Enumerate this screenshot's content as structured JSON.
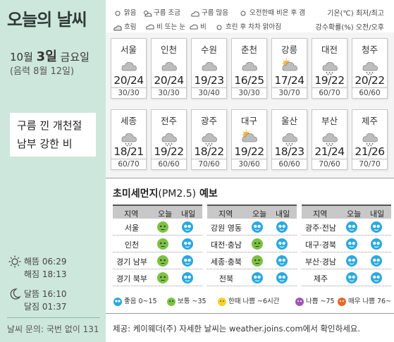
{
  "sidebar": {
    "title": "오늘의 날씨",
    "date_month": "10월",
    "date_day": "3일",
    "date_weekday": "금요일",
    "lunar": "(음력 8월 12일)",
    "note_line1": "구름 낀 개천절",
    "note_line2": "남부 강한 비",
    "sunrise": "해뜸 06:29",
    "sunset": "해짐 18:13",
    "moonrise": "달뜸 16:10",
    "moonset": "달짐 01:37",
    "contact": "날씨 문의: 국번 없이 131"
  },
  "legend": {
    "clear": "맑음",
    "partly": "구름 조금",
    "cloudy": "구름 많음",
    "am_rain": "오전한때 비온 후 갬",
    "overcast": "흐림",
    "rain_snow": "비 또는 눈",
    "rain": "비",
    "clearing": "흐린 후 차차 맑아짐",
    "unit_temp": "기온(℃) 최저/최고",
    "unit_rain": "강수확률(%) 오전/오후"
  },
  "cities_row1": [
    {
      "name": "서울",
      "temp": "20/24",
      "rain": "30/30",
      "icon": "cloudy"
    },
    {
      "name": "인천",
      "temp": "20/24",
      "rain": "30/30",
      "icon": "cloudy"
    },
    {
      "name": "수원",
      "temp": "19/23",
      "rain": "30/40",
      "icon": "cloudy"
    },
    {
      "name": "춘천",
      "temp": "16/25",
      "rain": "30/30",
      "icon": "cloudy"
    },
    {
      "name": "강릉",
      "temp": "17/24",
      "rain": "30/70",
      "icon": "partly"
    },
    {
      "name": "대전",
      "temp": "19/22",
      "rain": "60/70",
      "icon": "rain"
    },
    {
      "name": "청주",
      "temp": "20/22",
      "rain": "60/60",
      "icon": "rain"
    }
  ],
  "cities_row2": [
    {
      "name": "세종",
      "temp": "18/21",
      "rain": "60/70",
      "icon": "rain"
    },
    {
      "name": "전주",
      "temp": "19/22",
      "rain": "60/60",
      "icon": "rain"
    },
    {
      "name": "광주",
      "temp": "18/22",
      "rain": "70/60",
      "icon": "rain"
    },
    {
      "name": "대구",
      "temp": "19/22",
      "rain": "30/60",
      "icon": "partly"
    },
    {
      "name": "울산",
      "temp": "18/23",
      "rain": "60/60",
      "icon": "rain"
    },
    {
      "name": "부산",
      "temp": "21/24",
      "rain": "70/60",
      "icon": "rain"
    },
    {
      "name": "제주",
      "temp": "21/26",
      "rain": "70/70",
      "icon": "rain"
    }
  ],
  "dust": {
    "title": "초미세먼지",
    "pm": "(PM2.5)",
    "title_suffix": "예보",
    "col_region": "지역",
    "col_today": "오늘",
    "col_tomorrow": "내일",
    "groups": [
      [
        {
          "region": "서울",
          "today": "normal",
          "tomorrow": "good"
        },
        {
          "region": "인천",
          "today": "normal",
          "tomorrow": "good"
        },
        {
          "region": "경기 남부",
          "today": "normal",
          "tomorrow": "good"
        },
        {
          "region": "경기 북부",
          "today": "normal",
          "tomorrow": "good"
        }
      ],
      [
        {
          "region": "강원 영동",
          "today": "good",
          "tomorrow": "good"
        },
        {
          "region": "대전·충남",
          "today": "normal",
          "tomorrow": "good"
        },
        {
          "region": "세종·충북",
          "today": "normal",
          "tomorrow": "good"
        },
        {
          "region": "전북",
          "today": "good",
          "tomorrow": "good"
        }
      ],
      [
        {
          "region": "광주·전남",
          "today": "good",
          "tomorrow": "good"
        },
        {
          "region": "대구·경북",
          "today": "good",
          "tomorrow": "good"
        },
        {
          "region": "부산·경남",
          "today": "good",
          "tomorrow": "good"
        },
        {
          "region": "제주",
          "today": "good",
          "tomorrow": "good"
        }
      ]
    ],
    "legend_good": "좋음 0~15",
    "legend_normal": "보통 ~35",
    "legend_bad_short": "한때 나쁨 ~6시간",
    "legend_bad": "나쁨 ~75",
    "legend_very_bad": "매우 나쁨 76~",
    "colors": {
      "good": "#29a9e1",
      "normal": "#7cc242",
      "short": "#f5d327",
      "bad": "#9b59b6",
      "very_bad": "#e56a2b"
    }
  },
  "credit": "제공: 케이웨더(주) 자세한 날씨는 weather.joins.com에서 확인하세요."
}
